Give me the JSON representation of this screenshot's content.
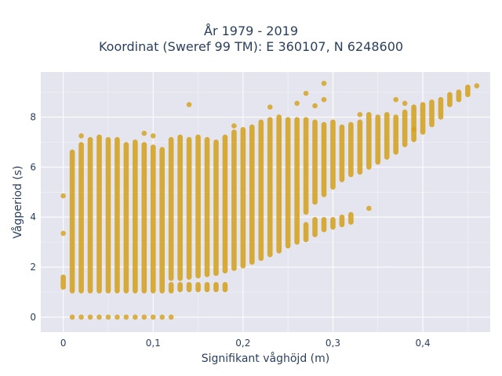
{
  "chart_data": {
    "type": "scatter",
    "title_line1": "År 1979 - 2019",
    "title_line2": "Koordinat (Sweref 99 TM): E 360107, N 6248600",
    "xlabel": "Signifikant våghöjd (m)",
    "ylabel": "Vågperiod (s)",
    "xlim": [
      -0.025,
      0.475
    ],
    "ylim": [
      -0.6,
      9.8
    ],
    "x_ticks": [
      0,
      0.1,
      0.2,
      0.3,
      0.4
    ],
    "x_tick_labels": [
      "0",
      "0,1",
      "0,2",
      "0,3",
      "0,4"
    ],
    "y_ticks": [
      0,
      2,
      4,
      6,
      8
    ],
    "y_tick_labels": [
      "0",
      "2",
      "4",
      "6",
      "8"
    ],
    "grid": true,
    "marker_color": "#d4a017",
    "plot_background": "#e5e5f0",
    "columns": [
      {
        "x": 0.0,
        "segments": [
          [
            1.2,
            1.6
          ]
        ]
      },
      {
        "x": 0.01,
        "segments": [
          [
            0.0,
            0.0
          ],
          [
            1.05,
            6.6
          ]
        ]
      },
      {
        "x": 0.02,
        "segments": [
          [
            0.0,
            0.0
          ],
          [
            1.05,
            6.9
          ]
        ]
      },
      {
        "x": 0.03,
        "segments": [
          [
            0.0,
            0.0
          ],
          [
            1.05,
            7.1
          ]
        ]
      },
      {
        "x": 0.04,
        "segments": [
          [
            0.0,
            0.0
          ],
          [
            1.05,
            7.2
          ]
        ]
      },
      {
        "x": 0.05,
        "segments": [
          [
            0.0,
            0.0
          ],
          [
            1.05,
            7.1
          ]
        ]
      },
      {
        "x": 0.06,
        "segments": [
          [
            0.0,
            0.0
          ],
          [
            1.05,
            7.1
          ]
        ]
      },
      {
        "x": 0.07,
        "segments": [
          [
            0.0,
            0.0
          ],
          [
            1.05,
            6.9
          ]
        ]
      },
      {
        "x": 0.08,
        "segments": [
          [
            0.0,
            0.0
          ],
          [
            1.05,
            7.0
          ]
        ]
      },
      {
        "x": 0.09,
        "segments": [
          [
            0.0,
            0.0
          ],
          [
            1.05,
            6.9
          ]
        ]
      },
      {
        "x": 0.1,
        "segments": [
          [
            0.0,
            0.0
          ],
          [
            1.05,
            6.8
          ]
        ]
      },
      {
        "x": 0.11,
        "segments": [
          [
            0.0,
            0.0
          ],
          [
            1.05,
            6.7
          ]
        ]
      },
      {
        "x": 0.12,
        "segments": [
          [
            1.05,
            1.3
          ],
          [
            1.55,
            7.1
          ]
        ]
      },
      {
        "x": 0.13,
        "segments": [
          [
            1.1,
            1.3
          ],
          [
            1.55,
            7.2
          ]
        ]
      },
      {
        "x": 0.14,
        "segments": [
          [
            1.1,
            1.3
          ],
          [
            1.6,
            7.1
          ]
        ]
      },
      {
        "x": 0.15,
        "segments": [
          [
            1.1,
            1.3
          ],
          [
            1.65,
            7.2
          ]
        ]
      },
      {
        "x": 0.16,
        "segments": [
          [
            1.1,
            1.3
          ],
          [
            1.7,
            7.1
          ]
        ]
      },
      {
        "x": 0.17,
        "segments": [
          [
            1.1,
            1.3
          ],
          [
            1.75,
            7.0
          ]
        ]
      },
      {
        "x": 0.18,
        "segments": [
          [
            1.1,
            1.3
          ],
          [
            1.85,
            7.2
          ]
        ]
      },
      {
        "x": 0.19,
        "segments": [
          [
            1.95,
            7.4
          ]
        ]
      },
      {
        "x": 0.2,
        "segments": [
          [
            2.05,
            7.5
          ]
        ]
      },
      {
        "x": 0.21,
        "segments": [
          [
            2.2,
            7.6
          ]
        ]
      },
      {
        "x": 0.22,
        "segments": [
          [
            2.35,
            7.8
          ]
        ]
      },
      {
        "x": 0.23,
        "segments": [
          [
            2.5,
            7.9
          ]
        ]
      },
      {
        "x": 0.24,
        "segments": [
          [
            2.65,
            8.0
          ]
        ]
      },
      {
        "x": 0.25,
        "segments": [
          [
            2.85,
            7.9
          ]
        ]
      },
      {
        "x": 0.26,
        "segments": [
          [
            3.0,
            7.9
          ]
        ]
      },
      {
        "x": 0.27,
        "segments": [
          [
            3.1,
            3.7
          ],
          [
            4.2,
            7.9
          ]
        ]
      },
      {
        "x": 0.28,
        "segments": [
          [
            3.3,
            3.9
          ],
          [
            4.6,
            7.8
          ]
        ]
      },
      {
        "x": 0.29,
        "segments": [
          [
            3.5,
            3.9
          ],
          [
            4.9,
            7.7
          ]
        ]
      },
      {
        "x": 0.3,
        "segments": [
          [
            3.6,
            3.9
          ],
          [
            5.2,
            7.8
          ]
        ]
      },
      {
        "x": 0.31,
        "segments": [
          [
            3.7,
            4.0
          ],
          [
            5.5,
            7.6
          ]
        ]
      },
      {
        "x": 0.32,
        "segments": [
          [
            3.8,
            4.1
          ],
          [
            5.7,
            7.7
          ]
        ]
      },
      {
        "x": 0.33,
        "segments": [
          [
            5.8,
            7.8
          ]
        ]
      },
      {
        "x": 0.34,
        "segments": [
          [
            6.0,
            8.1
          ]
        ]
      },
      {
        "x": 0.35,
        "segments": [
          [
            6.2,
            8.0
          ]
        ]
      },
      {
        "x": 0.36,
        "segments": [
          [
            6.4,
            8.1
          ]
        ]
      },
      {
        "x": 0.37,
        "segments": [
          [
            6.6,
            8.0
          ]
        ]
      },
      {
        "x": 0.38,
        "segments": [
          [
            6.9,
            8.2
          ]
        ]
      },
      {
        "x": 0.39,
        "segments": [
          [
            7.1,
            8.4
          ]
        ]
      },
      {
        "x": 0.4,
        "segments": [
          [
            7.4,
            8.5
          ]
        ]
      },
      {
        "x": 0.41,
        "segments": [
          [
            7.7,
            8.6
          ]
        ]
      },
      {
        "x": 0.42,
        "segments": [
          [
            8.0,
            8.7
          ]
        ]
      },
      {
        "x": 0.43,
        "segments": [
          [
            8.5,
            8.9
          ]
        ]
      },
      {
        "x": 0.44,
        "segments": [
          [
            8.7,
            9.0
          ]
        ]
      },
      {
        "x": 0.45,
        "segments": [
          [
            8.9,
            9.2
          ]
        ]
      }
    ],
    "extra_points": [
      [
        0.0,
        4.85
      ],
      [
        0.0,
        3.35
      ],
      [
        0.12,
        0.0
      ],
      [
        0.14,
        8.5
      ],
      [
        0.09,
        7.35
      ],
      [
        0.02,
        7.25
      ],
      [
        0.29,
        9.35
      ],
      [
        0.27,
        8.95
      ],
      [
        0.29,
        8.7
      ],
      [
        0.28,
        8.45
      ],
      [
        0.23,
        8.4
      ],
      [
        0.33,
        8.1
      ],
      [
        0.34,
        4.35
      ],
      [
        0.37,
        8.7
      ],
      [
        0.38,
        8.55
      ],
      [
        0.39,
        7.5
      ],
      [
        0.46,
        9.25
      ],
      [
        0.1,
        7.25
      ],
      [
        0.19,
        7.65
      ],
      [
        0.26,
        8.55
      ]
    ]
  }
}
